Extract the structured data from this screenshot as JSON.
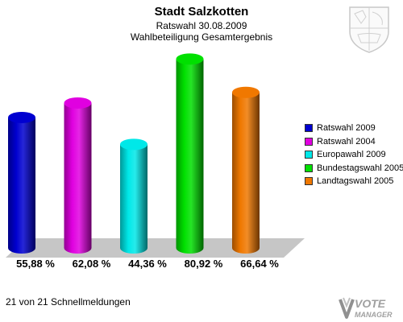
{
  "header": {
    "title": "Stadt Salzkotten",
    "subtitle_election": "Ratswahl 30.08.2009",
    "subtitle_result": "Wahlbeteiligung Gesamtergebnis"
  },
  "footer": {
    "status": "21 von 21 Schnellmeldungen"
  },
  "logo": {
    "word1": "VOTE",
    "word2": "MANAGER"
  },
  "chart_data": {
    "type": "bar",
    "title": "Stadt Salzkotten",
    "categories": [
      "Ratswahl 2009",
      "Ratswahl 2004",
      "Europawahl 2009",
      "Bundestagswahl 2005",
      "Landtagswahl 2005"
    ],
    "values": [
      55.88,
      62.08,
      44.36,
      80.92,
      66.64
    ],
    "value_labels": [
      "55,88 %",
      "62,08 %",
      "44,36 %",
      "80,92 %",
      "66,64 %"
    ],
    "colors": [
      "#0000d0",
      "#e000e0",
      "#00e8e8",
      "#00e000",
      "#f07800"
    ],
    "legend_position": "right",
    "style": "3d-cylinder"
  }
}
